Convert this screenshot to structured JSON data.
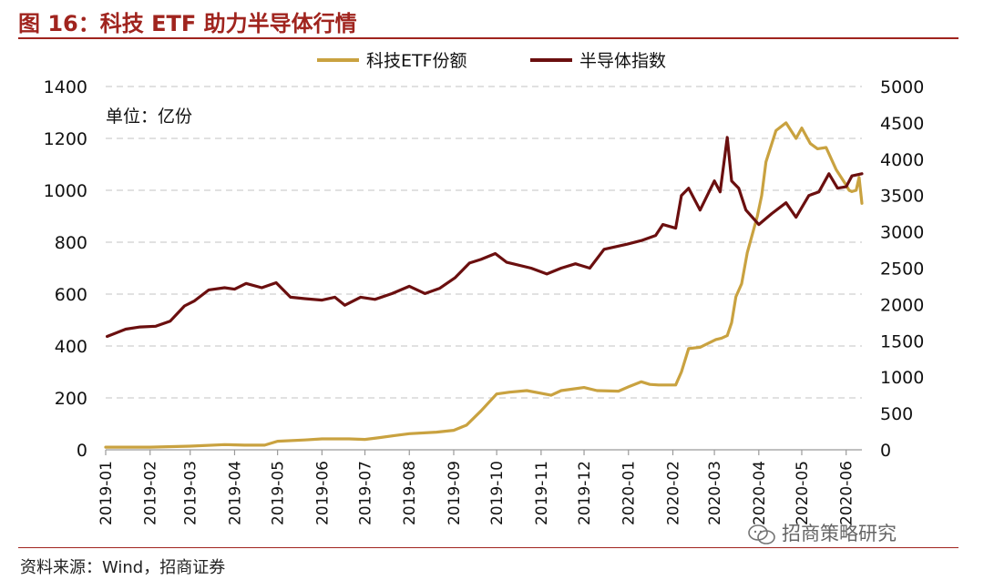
{
  "figure": {
    "title": "图 16：科技 ETF 助力半导体行情",
    "source": "资料来源：Wind，招商证券",
    "watermark": "招商策略研究"
  },
  "colors": {
    "title": "#A0241E",
    "etf_series": "#C9A240",
    "semiconductor_series": "#6B0F0F",
    "grid": "#CFCFCF"
  },
  "chart_data": {
    "type": "line",
    "unit_annotation": "单位：亿份",
    "legend_position": "top-center",
    "grid": true,
    "x_range": [
      "2019-01-01",
      "2020-06-12"
    ],
    "x_ticks": [
      "2019-01",
      "2019-02",
      "2019-03",
      "2019-04",
      "2019-05",
      "2019-06",
      "2019-07",
      "2019-08",
      "2019-09",
      "2019-10",
      "2019-11",
      "2019-12",
      "2020-01",
      "2020-02",
      "2020-03",
      "2020-04",
      "2020-05",
      "2020-06"
    ],
    "y_left": {
      "min": 0,
      "max": 1400,
      "ticks": [
        0,
        200,
        400,
        600,
        800,
        1000,
        1200,
        1400
      ]
    },
    "y_right": {
      "min": 0,
      "max": 5000,
      "ticks": [
        0,
        500,
        1000,
        1500,
        2000,
        2500,
        3000,
        3500,
        4000,
        4500,
        5000
      ]
    },
    "series": [
      {
        "name": "科技ETF份额",
        "axis": "left",
        "points": [
          [
            "2019-01-01",
            10
          ],
          [
            "2019-02-01",
            10
          ],
          [
            "2019-03-01",
            14
          ],
          [
            "2019-03-25",
            20
          ],
          [
            "2019-04-08",
            18
          ],
          [
            "2019-04-22",
            18
          ],
          [
            "2019-05-01",
            33
          ],
          [
            "2019-05-20",
            38
          ],
          [
            "2019-06-01",
            42
          ],
          [
            "2019-06-20",
            42
          ],
          [
            "2019-07-01",
            40
          ],
          [
            "2019-07-10",
            46
          ],
          [
            "2019-07-22",
            55
          ],
          [
            "2019-08-01",
            62
          ],
          [
            "2019-08-20",
            68
          ],
          [
            "2019-09-01",
            75
          ],
          [
            "2019-09-10",
            95
          ],
          [
            "2019-09-20",
            150
          ],
          [
            "2019-10-01",
            215
          ],
          [
            "2019-10-10",
            222
          ],
          [
            "2019-10-22",
            228
          ],
          [
            "2019-11-01",
            218
          ],
          [
            "2019-11-08",
            210
          ],
          [
            "2019-11-15",
            228
          ],
          [
            "2019-12-01",
            240
          ],
          [
            "2019-12-10",
            228
          ],
          [
            "2019-12-25",
            226
          ],
          [
            "2020-01-02",
            245
          ],
          [
            "2020-01-10",
            262
          ],
          [
            "2020-01-16",
            252
          ],
          [
            "2020-01-22",
            250
          ],
          [
            "2020-02-03",
            250
          ],
          [
            "2020-02-07",
            300
          ],
          [
            "2020-02-12",
            390
          ],
          [
            "2020-02-20",
            395
          ],
          [
            "2020-03-02",
            425
          ],
          [
            "2020-03-06",
            430
          ],
          [
            "2020-03-10",
            440
          ],
          [
            "2020-03-13",
            490
          ],
          [
            "2020-03-16",
            590
          ],
          [
            "2020-03-20",
            640
          ],
          [
            "2020-03-24",
            760
          ],
          [
            "2020-03-31",
            900
          ],
          [
            "2020-04-03",
            980
          ],
          [
            "2020-04-06",
            1110
          ],
          [
            "2020-04-13",
            1230
          ],
          [
            "2020-04-20",
            1260
          ],
          [
            "2020-04-27",
            1200
          ],
          [
            "2020-05-01",
            1240
          ],
          [
            "2020-05-07",
            1180
          ],
          [
            "2020-05-12",
            1160
          ],
          [
            "2020-05-18",
            1165
          ],
          [
            "2020-05-25",
            1080
          ],
          [
            "2020-06-01",
            1020
          ],
          [
            "2020-06-03",
            1000
          ],
          [
            "2020-06-05",
            995
          ],
          [
            "2020-06-08",
            1000
          ],
          [
            "2020-06-10",
            1050
          ],
          [
            "2020-06-12",
            950
          ]
        ]
      },
      {
        "name": "半导体指数",
        "axis": "right",
        "points": [
          [
            "2019-01-02",
            1560
          ],
          [
            "2019-01-15",
            1660
          ],
          [
            "2019-01-25",
            1690
          ],
          [
            "2019-02-05",
            1700
          ],
          [
            "2019-02-15",
            1770
          ],
          [
            "2019-02-25",
            1980
          ],
          [
            "2019-03-04",
            2050
          ],
          [
            "2019-03-14",
            2200
          ],
          [
            "2019-03-25",
            2230
          ],
          [
            "2019-04-01",
            2210
          ],
          [
            "2019-04-09",
            2290
          ],
          [
            "2019-04-20",
            2230
          ],
          [
            "2019-04-30",
            2300
          ],
          [
            "2019-05-10",
            2100
          ],
          [
            "2019-05-20",
            2080
          ],
          [
            "2019-06-01",
            2060
          ],
          [
            "2019-06-10",
            2100
          ],
          [
            "2019-06-17",
            1990
          ],
          [
            "2019-06-28",
            2100
          ],
          [
            "2019-07-08",
            2070
          ],
          [
            "2019-07-20",
            2150
          ],
          [
            "2019-08-01",
            2250
          ],
          [
            "2019-08-12",
            2150
          ],
          [
            "2019-08-22",
            2220
          ],
          [
            "2019-09-02",
            2370
          ],
          [
            "2019-09-12",
            2570
          ],
          [
            "2019-09-20",
            2620
          ],
          [
            "2019-09-30",
            2700
          ],
          [
            "2019-10-08",
            2580
          ],
          [
            "2019-10-25",
            2500
          ],
          [
            "2019-11-05",
            2420
          ],
          [
            "2019-11-15",
            2500
          ],
          [
            "2019-11-25",
            2560
          ],
          [
            "2019-12-05",
            2500
          ],
          [
            "2019-12-15",
            2760
          ],
          [
            "2019-12-31",
            2830
          ],
          [
            "2020-01-10",
            2880
          ],
          [
            "2020-01-20",
            2950
          ],
          [
            "2020-01-25",
            3100
          ],
          [
            "2020-02-03",
            3050
          ],
          [
            "2020-02-07",
            3500
          ],
          [
            "2020-02-12",
            3600
          ],
          [
            "2020-02-20",
            3300
          ],
          [
            "2020-03-01",
            3700
          ],
          [
            "2020-03-05",
            3550
          ],
          [
            "2020-03-10",
            4300
          ],
          [
            "2020-03-13",
            3700
          ],
          [
            "2020-03-18",
            3600
          ],
          [
            "2020-03-23",
            3300
          ],
          [
            "2020-04-01",
            3100
          ],
          [
            "2020-04-10",
            3250
          ],
          [
            "2020-04-20",
            3400
          ],
          [
            "2020-04-27",
            3200
          ],
          [
            "2020-05-06",
            3500
          ],
          [
            "2020-05-13",
            3550
          ],
          [
            "2020-05-20",
            3800
          ],
          [
            "2020-05-26",
            3600
          ],
          [
            "2020-06-01",
            3620
          ],
          [
            "2020-06-05",
            3770
          ],
          [
            "2020-06-12",
            3800
          ]
        ]
      }
    ]
  }
}
